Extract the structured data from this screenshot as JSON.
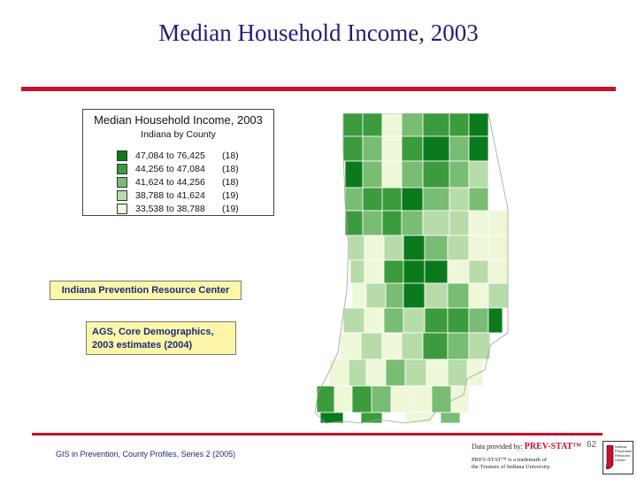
{
  "slide": {
    "title": "Median Household Income, 2003",
    "footer": "GIS in Prevention, County Profiles, Series 2 (2005)",
    "page_number": "62"
  },
  "legend": {
    "title": "Median Household Income, 2003",
    "subtitle": "Indiana by County",
    "classes": [
      {
        "range": "47,084 to 76,425",
        "count": "(18)",
        "color": "#0b7a1c"
      },
      {
        "range": "44,256 to 47,084",
        "count": "(18)",
        "color": "#3c9b3c"
      },
      {
        "range": "41,624 to 44,256",
        "count": "(18)",
        "color": "#79bc73"
      },
      {
        "range": "38,788 to 41,624",
        "count": "(19)",
        "color": "#b7dca9"
      },
      {
        "range": "33,538 to 38,788",
        "count": "(19)",
        "color": "#eef7d8"
      }
    ]
  },
  "organization_label": "Indiana Prevention Resource Center",
  "data_source": {
    "line1": "AGS, Core Demographics,",
    "line2": "2003 estimates (2004)"
  },
  "provider": {
    "prefix": "Data provided by:",
    "brand": "PREV-STAT™",
    "trademark_line1": "PREV-STAT™ is a trademark of",
    "trademark_line2": "the Trustees of Indiana University."
  },
  "logo_text": [
    "Indiana",
    "Prevention",
    "Resource",
    "Center"
  ],
  "map": {
    "state": "Indiana",
    "counties_per_class": [
      18,
      18,
      18,
      19,
      19
    ]
  }
}
